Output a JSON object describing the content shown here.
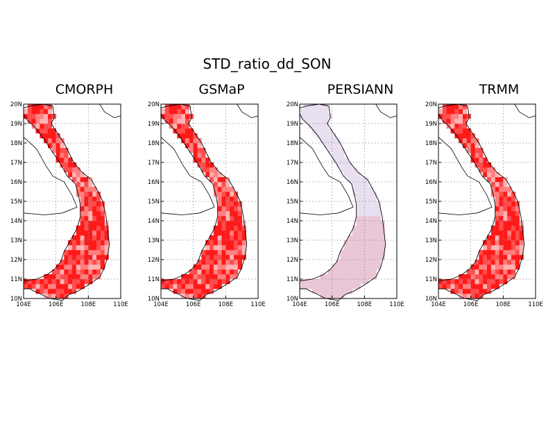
{
  "figure": {
    "title": "STD_ratio_dd_SON",
    "colors": {
      "strong": "#ff1a1a",
      "mid": "#ff4d4d",
      "light": "#ff8080",
      "pale": "#ffb3b3",
      "lavender": "#e8dff0",
      "pink": "#e9c7d6"
    }
  },
  "axes": {
    "lat_ticks": [
      "20N",
      "19N",
      "18N",
      "17N",
      "16N",
      "15N",
      "14N",
      "13N",
      "12N",
      "11N",
      "10N"
    ],
    "lon_ticks": [
      "104E",
      "106E",
      "108E",
      "110E"
    ],
    "lon_range": [
      104,
      110
    ],
    "lat_range": [
      10,
      20
    ],
    "grid": "dotted"
  },
  "panels": [
    {
      "id": "cmorph",
      "title": "CMORPH",
      "scheme": "red"
    },
    {
      "id": "gsmap",
      "title": "GSMaP",
      "scheme": "red"
    },
    {
      "id": "persiann",
      "title": "PERSIANN",
      "scheme": "pastel"
    },
    {
      "id": "trmm",
      "title": "TRMM",
      "scheme": "red"
    }
  ]
}
